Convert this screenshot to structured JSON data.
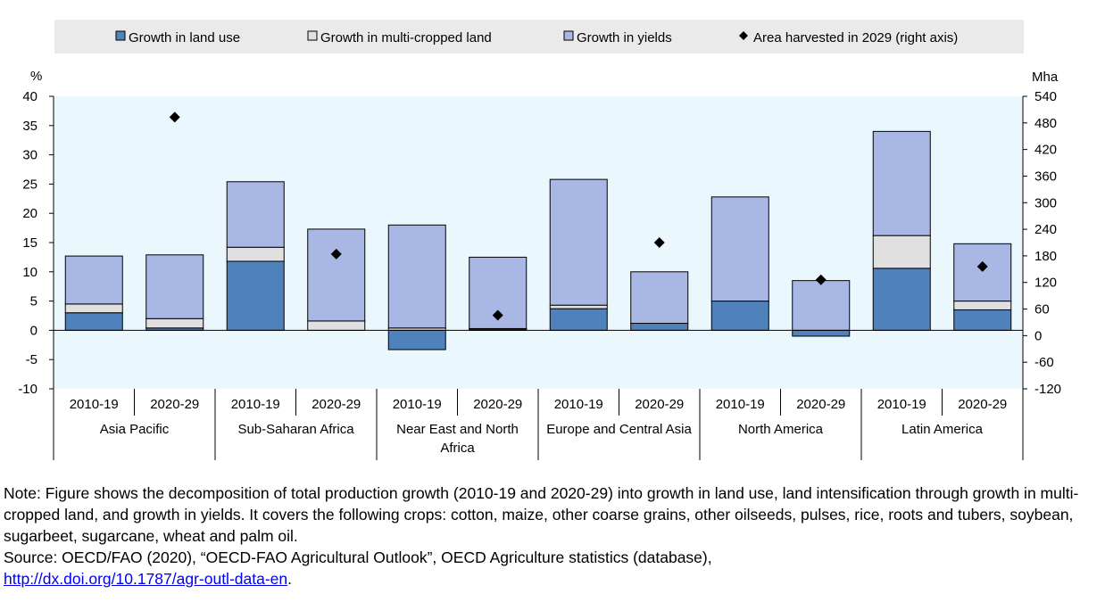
{
  "chart_data": {
    "type": "bar",
    "stacked": true,
    "legend_position": "top",
    "grid": false,
    "y_unit_label": "%",
    "y2_unit_label": "Mha",
    "ylim": [
      -10,
      40
    ],
    "y_ticks": [
      -10,
      -5,
      0,
      5,
      10,
      15,
      20,
      25,
      30,
      35,
      40
    ],
    "y2lim": [
      -120,
      540
    ],
    "y2_ticks": [
      -120,
      -60,
      0,
      60,
      120,
      180,
      240,
      300,
      360,
      420,
      480,
      540
    ],
    "groups": [
      "Asia Pacific",
      "Sub-Saharan Africa",
      "Near East and North Africa",
      "Europe and Central Asia",
      "North America",
      "Latin America"
    ],
    "periods": [
      "2010-19",
      "2020-29"
    ],
    "categories": [
      "Asia Pacific 2010-19",
      "Asia Pacific 2020-29",
      "Sub-Saharan Africa 2010-19",
      "Sub-Saharan Africa 2020-29",
      "Near East and North Africa 2010-19",
      "Near East and North Africa 2020-29",
      "Europe and Central Asia 2010-19",
      "Europe and Central Asia 2020-29",
      "North America 2010-19",
      "North America 2020-29",
      "Latin America 2010-19",
      "Latin America 2020-29"
    ],
    "series": [
      {
        "name": "Growth in land use",
        "color": "#4f81bd",
        "values": [
          3.0,
          0.4,
          11.8,
          0.0,
          -3.3,
          0.2,
          3.7,
          1.2,
          5.0,
          -1.0,
          10.6,
          3.5
        ]
      },
      {
        "name": "Growth in multi-cropped land",
        "color": "#e0e0e0",
        "values": [
          1.5,
          1.6,
          2.4,
          1.6,
          0.4,
          0.1,
          0.6,
          0.0,
          0.0,
          0.0,
          5.6,
          1.5
        ]
      },
      {
        "name": "Growth in yields",
        "color": "#a9b7e4",
        "values": [
          8.2,
          10.9,
          11.2,
          15.7,
          17.6,
          12.2,
          21.5,
          8.8,
          17.8,
          8.5,
          17.8,
          9.8
        ]
      }
    ],
    "scatter": {
      "name": "Area harvested in 2029 (right axis)",
      "color": "#000000",
      "axis": "right",
      "values": [
        null,
        493,
        null,
        184,
        null,
        46,
        null,
        210,
        null,
        126,
        null,
        156
      ]
    }
  },
  "note": {
    "text": "Note: Figure shows the decomposition of total production growth (2010-19 and 2020-29) into growth in land use, land intensification through growth in multi-cropped land, and growth in yields. It covers the following crops: cotton, maize, other coarse grains, other oilseeds, pulses, rice, roots and tubers, soybean, sugarbeet, sugarcane, wheat and palm oil.",
    "source": "Source: OECD/FAO (2020), “OECD-FAO Agricultural Outlook”, OECD Agriculture statistics (database),",
    "link": "http://dx.doi.org/10.1787/agr-outl-data-en",
    "link_suffix": "."
  }
}
